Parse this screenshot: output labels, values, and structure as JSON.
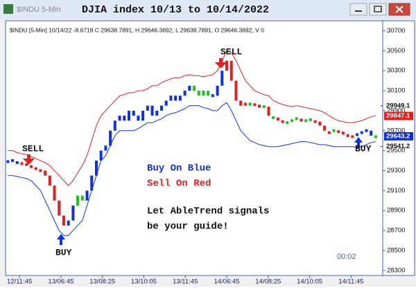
{
  "chart_data": {
    "type": "signal-bars",
    "window_label": "$INDU 5-Min",
    "title": "DJIA index 10/13 to 10/14/2022",
    "info_line": "$INDU [5-Min] 10/14/22 -8.6718 C 29638.7891, H 29646.3692, L 29638.7891, O 29646.3692, V 0",
    "values": [
      29390,
      29400,
      29380,
      29370,
      29360,
      29340,
      29320,
      29300,
      29250,
      29150,
      29000,
      28850,
      28750,
      28800,
      28950,
      29050,
      29000,
      29100,
      29250,
      29400,
      29500,
      29550,
      29700,
      29800,
      29850,
      29800,
      29900,
      29850,
      29800,
      29900,
      29950,
      29850,
      29900,
      29950,
      30000,
      30050,
      30000,
      30050,
      30100,
      30150,
      30100,
      30050,
      30100,
      30050,
      30050,
      30150,
      30300,
      30400,
      30200,
      30000,
      29950,
      29980,
      29950,
      29960,
      29930,
      29940,
      29850,
      29830,
      29800,
      29790,
      29780,
      29800,
      29820,
      29790,
      29800,
      29810,
      29790,
      29750,
      29700,
      29680,
      29700,
      29690,
      29660,
      29650,
      29640,
      29660,
      29680,
      29700,
      29650,
      29639
    ],
    "bar_colors": [
      "#1030e0",
      "#1030e0",
      "#1030e0",
      "#e02020",
      "#e02020",
      "#e02020",
      "#e02020",
      "#e02020",
      "#e02020",
      "#e02020",
      "#e02020",
      "#e02020",
      "#e02020",
      "#1030e0",
      "#1030e0",
      "#20c020",
      "#20c020",
      "#1030e0",
      "#1030e0",
      "#1030e0",
      "#1030e0",
      "#1030e0",
      "#1030e0",
      "#1030e0",
      "#1030e0",
      "#1030e0",
      "#1030e0",
      "#1030e0",
      "#1030e0",
      "#1030e0",
      "#1030e0",
      "#1030e0",
      "#1030e0",
      "#1030e0",
      "#1030e0",
      "#1030e0",
      "#1030e0",
      "#1030e0",
      "#1030e0",
      "#1030e0",
      "#20c020",
      "#20c020",
      "#20c020",
      "#20c020",
      "#1030e0",
      "#1030e0",
      "#1030e0",
      "#e02020",
      "#e02020",
      "#e02020",
      "#e02020",
      "#e02020",
      "#20c020",
      "#e02020",
      "#e02020",
      "#20c020",
      "#e02020",
      "#20c020",
      "#e02020",
      "#e02020",
      "#20c020",
      "#20c020",
      "#20c020",
      "#e02020",
      "#20c020",
      "#20c020",
      "#e02020",
      "#e02020",
      "#e02020",
      "#e02020",
      "#20c020",
      "#e02020",
      "#e02020",
      "#e02020",
      "#e02020",
      "#1030e0",
      "#1030e0",
      "#1030e0",
      "#1030e0",
      "#20c020"
    ],
    "upper_band": [
      29500,
      29500,
      29480,
      29470,
      29460,
      29440,
      29420,
      29400,
      29380,
      29350,
      29300,
      29250,
      29200,
      29150,
      29200,
      29280,
      29350,
      29450,
      29600,
      29750,
      29850,
      29900,
      29950,
      30000,
      30050,
      30060,
      30080,
      30080,
      30100,
      30100,
      30120,
      30150,
      30150,
      30180,
      30200,
      30220,
      30230,
      30230,
      30250,
      30260,
      30250,
      30250,
      30240,
      30250,
      30260,
      30300,
      30400,
      30500,
      30480,
      30400,
      30300,
      30200,
      30150,
      30100,
      30080,
      30060,
      30050,
      30000,
      29980,
      29960,
      29950,
      29940,
      29950,
      29940,
      29930,
      29920,
      29910,
      29900,
      29880,
      29850,
      29820,
      29800,
      29790,
      29780,
      29780,
      29790,
      29800,
      29820,
      29840,
      29850
    ],
    "lower_band": [
      29250,
      29250,
      29240,
      29230,
      29220,
      29200,
      29150,
      29100,
      29000,
      28900,
      28800,
      28700,
      28650,
      28650,
      28700,
      28750,
      28800,
      28950,
      29100,
      29250,
      29400,
      29450,
      29550,
      29650,
      29700,
      29700,
      29700,
      29700,
      29720,
      29750,
      29780,
      29780,
      29800,
      29820,
      29850,
      29870,
      29880,
      29900,
      29920,
      29950,
      29950,
      29950,
      29930,
      29920,
      29900,
      29900,
      29950,
      29980,
      29900,
      29800,
      29700,
      29650,
      29600,
      29580,
      29560,
      29550,
      29540,
      29540,
      29540,
      29550,
      29560,
      29570,
      29580,
      29590,
      29590,
      29580,
      29570,
      29560,
      29560,
      29550,
      29540,
      29540,
      29540,
      29540,
      29540,
      29530,
      29540,
      29560,
      29580,
      29590
    ],
    "upper_color": "#e02020",
    "lower_color": "#1030e0",
    "xlim": [
      -0.5,
      80.5
    ],
    "xticks": [
      {
        "value": 2.5,
        "label": "12/11:45"
      },
      {
        "value": 11.4,
        "label": "13/06:45"
      },
      {
        "value": 20.3,
        "label": "13/08:25"
      },
      {
        "value": 29.2,
        "label": "13/10:05"
      },
      {
        "value": 38.1,
        "label": "13/11:45"
      },
      {
        "value": 47,
        "label": "14/06:45"
      },
      {
        "value": 55.9,
        "label": "14/08:25"
      },
      {
        "value": 64.8,
        "label": "14/10:05"
      },
      {
        "value": 73.7,
        "label": "14/11:45"
      }
    ],
    "ylim": [
      28250,
      30800
    ],
    "yticks": [
      28300,
      28500,
      28700,
      28900,
      29100,
      29300,
      29500,
      29700,
      29900,
      30100,
      30300,
      30500,
      30700
    ],
    "price_markers": [
      {
        "value": 29949.1,
        "box_color": null
      },
      {
        "value": 29847.1,
        "box_color": "#e02020"
      },
      {
        "value": 29643.2,
        "box_color": "#1030e0"
      },
      {
        "value": 29541.2,
        "box_color": null
      }
    ],
    "annotations": [
      "SELL",
      "BUY",
      "SELL",
      "BUY",
      "Buy On Blue",
      "Sell On Red",
      "Let AbleTrend signals",
      "be your guide!",
      "00:02"
    ]
  }
}
